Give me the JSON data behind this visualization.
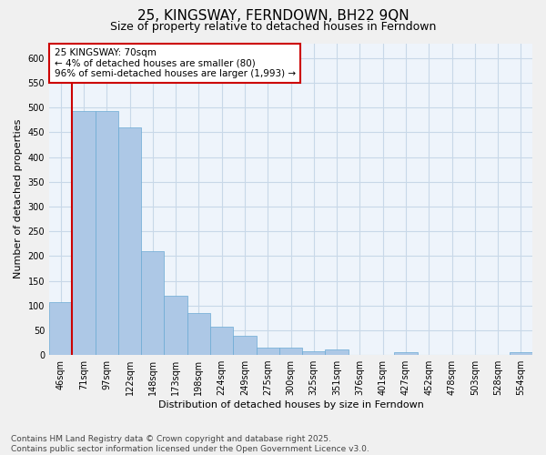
{
  "title": "25, KINGSWAY, FERNDOWN, BH22 9QN",
  "subtitle": "Size of property relative to detached houses in Ferndown",
  "xlabel": "Distribution of detached houses by size in Ferndown",
  "ylabel": "Number of detached properties",
  "bar_color": "#adc8e6",
  "bar_edge_color": "#6aaad4",
  "grid_color": "#c8d8e8",
  "background_color": "#eef4fb",
  "fig_background_color": "#f0f0f0",
  "categories": [
    "46sqm",
    "71sqm",
    "97sqm",
    "122sqm",
    "148sqm",
    "173sqm",
    "198sqm",
    "224sqm",
    "249sqm",
    "275sqm",
    "300sqm",
    "325sqm",
    "351sqm",
    "376sqm",
    "401sqm",
    "427sqm",
    "452sqm",
    "478sqm",
    "503sqm",
    "528sqm",
    "554sqm"
  ],
  "values": [
    107,
    493,
    493,
    460,
    210,
    120,
    84,
    58,
    39,
    15,
    15,
    8,
    11,
    0,
    0,
    5,
    0,
    0,
    0,
    0,
    5
  ],
  "ylim": [
    0,
    630
  ],
  "yticks": [
    0,
    50,
    100,
    150,
    200,
    250,
    300,
    350,
    400,
    450,
    500,
    550,
    600
  ],
  "annotation_text": "25 KINGSWAY: 70sqm\n← 4% of detached houses are smaller (80)\n96% of semi-detached houses are larger (1,993) →",
  "annotation_box_color": "#ffffff",
  "annotation_box_edge_color": "#cc0000",
  "vline_color": "#cc0000",
  "footer_text": "Contains HM Land Registry data © Crown copyright and database right 2025.\nContains public sector information licensed under the Open Government Licence v3.0.",
  "title_fontsize": 11,
  "subtitle_fontsize": 9,
  "axis_label_fontsize": 8,
  "tick_fontsize": 7,
  "annotation_fontsize": 7.5,
  "footer_fontsize": 6.5
}
